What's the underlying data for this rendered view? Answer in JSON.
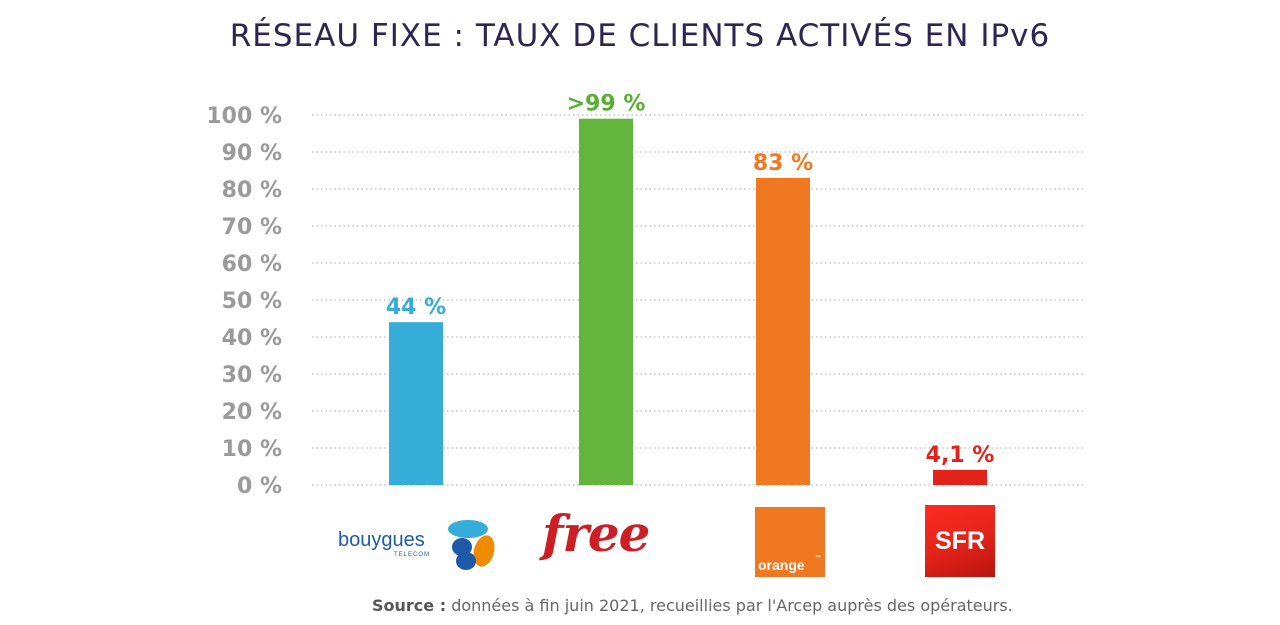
{
  "title": "RÉSEAU FIXE :  TAUX DE CLIENTS ACTIVÉS EN IPv6",
  "source": {
    "label": "Source :",
    "text": "données à fin juin 2021, recueillies par l'Arcep auprès des opérateurs."
  },
  "logos": {
    "bouygues": {
      "word": "bouygues",
      "sub": "TELECOM"
    },
    "free": {
      "word": "free"
    },
    "orange": {
      "word": "orange",
      "mark": "™"
    },
    "sfr": {
      "word": "SFR"
    }
  },
  "chart_data": {
    "type": "bar",
    "categories": [
      "Bouygues Telecom",
      "Free",
      "Orange",
      "SFR"
    ],
    "values": [
      44,
      99,
      83,
      4.1
    ],
    "data_labels": [
      "44 %",
      ">99 %",
      "83 %",
      "4,1 %"
    ],
    "colors": [
      "#36acd8",
      "#64b53d",
      "#f07820",
      "#e2231a"
    ],
    "ylim": [
      0,
      100
    ],
    "yticks": [
      0,
      10,
      20,
      30,
      40,
      50,
      60,
      70,
      80,
      90,
      100
    ],
    "ytick_labels": [
      "0 %",
      "10 %",
      "20 %",
      "30 %",
      "40 %",
      "50 %",
      "60 %",
      "70 %",
      "80 %",
      "90 %",
      "100 %"
    ],
    "grid": true,
    "grid_color": "#aaaaaa",
    "title": "RÉSEAU FIXE :  TAUX DE CLIENTS ACTIVÉS EN IPv6",
    "xlabel": "",
    "ylabel": ""
  }
}
